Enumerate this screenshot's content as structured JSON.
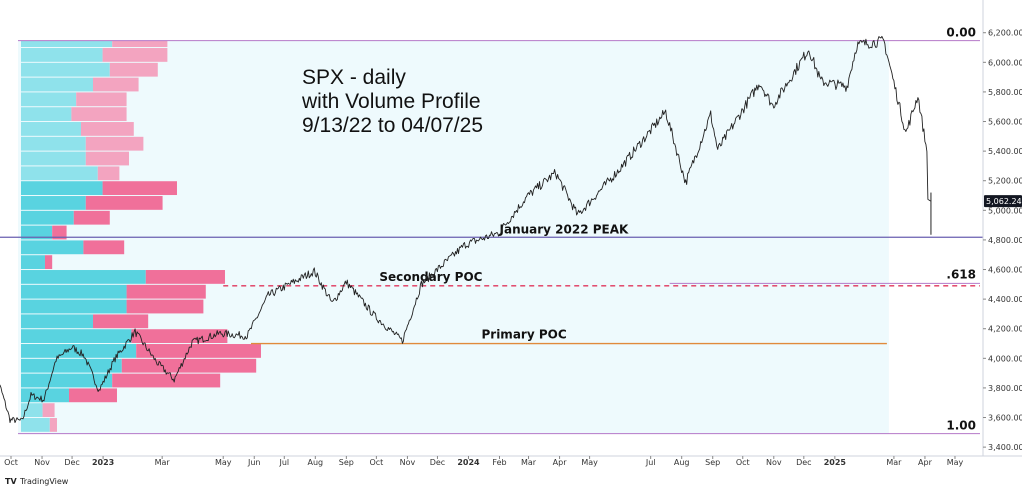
{
  "chart_data": {
    "type": "line",
    "title_lines": [
      "SPX - daily",
      "with Volume Profile",
      "9/13/22 to 04/07/25"
    ],
    "ylim": [
      3340,
      6340
    ],
    "yticks": [
      3400,
      3600,
      3800,
      4000,
      4200,
      4400,
      4600,
      4800,
      5000,
      5200,
      5400,
      5600,
      5800,
      6000,
      6200
    ],
    "ytick_labels": [
      "3,400.00",
      "3,600.00",
      "3,800.00",
      "4,000.00",
      "4,200.00",
      "4,400.00",
      "4,600.00",
      "4,800.00",
      "5,000.00",
      "5,200.00",
      "5,400.00",
      "5,600.00",
      "5,800.00",
      "6,000.00",
      "6,200.00"
    ],
    "xlim": [
      "2022-09-28",
      "2025-05-26"
    ],
    "xticks": [
      {
        "date": "2022-10-01",
        "label": "Oct",
        "bold": false
      },
      {
        "date": "2022-11-01",
        "label": "Nov",
        "bold": false
      },
      {
        "date": "2022-12-01",
        "label": "Dec",
        "bold": false
      },
      {
        "date": "2023-01-01",
        "label": "2023",
        "bold": true
      },
      {
        "date": "2023-03-01",
        "label": "Mar",
        "bold": false
      },
      {
        "date": "2023-05-01",
        "label": "May",
        "bold": false
      },
      {
        "date": "2023-06-01",
        "label": "Jun",
        "bold": false
      },
      {
        "date": "2023-07-01",
        "label": "Jul",
        "bold": false
      },
      {
        "date": "2023-08-01",
        "label": "Aug",
        "bold": false
      },
      {
        "date": "2023-09-01",
        "label": "Sep",
        "bold": false
      },
      {
        "date": "2023-10-01",
        "label": "Oct",
        "bold": false
      },
      {
        "date": "2023-11-01",
        "label": "Nov",
        "bold": false
      },
      {
        "date": "2023-12-01",
        "label": "Dec",
        "bold": false
      },
      {
        "date": "2024-01-01",
        "label": "2024",
        "bold": true
      },
      {
        "date": "2024-02-01",
        "label": "Feb",
        "bold": false
      },
      {
        "date": "2024-03-01",
        "label": "Mar",
        "bold": false
      },
      {
        "date": "2024-04-01",
        "label": "Apr",
        "bold": false
      },
      {
        "date": "2024-05-01",
        "label": "May",
        "bold": false
      },
      {
        "date": "2024-07-01",
        "label": "Jul",
        "bold": false
      },
      {
        "date": "2024-08-01",
        "label": "Aug",
        "bold": false
      },
      {
        "date": "2024-09-01",
        "label": "Sep",
        "bold": false
      },
      {
        "date": "2024-10-01",
        "label": "Oct",
        "bold": false
      },
      {
        "date": "2024-11-01",
        "label": "Nov",
        "bold": false
      },
      {
        "date": "2024-12-01",
        "label": "Dec",
        "bold": false
      },
      {
        "date": "2025-01-01",
        "label": "2025",
        "bold": true
      },
      {
        "date": "2025-03-01",
        "label": "Mar",
        "bold": false
      },
      {
        "date": "2025-04-01",
        "label": "Apr",
        "bold": false
      },
      {
        "date": "2025-05-01",
        "label": "May",
        "bold": false
      }
    ],
    "price_series": [
      {
        "date": "2022-09-13",
        "value": 3932
      },
      {
        "date": "2022-09-21",
        "value": 3790
      },
      {
        "date": "2022-09-30",
        "value": 3585
      },
      {
        "date": "2022-10-12",
        "value": 3577
      },
      {
        "date": "2022-10-21",
        "value": 3750
      },
      {
        "date": "2022-11-03",
        "value": 3720
      },
      {
        "date": "2022-11-15",
        "value": 3991
      },
      {
        "date": "2022-12-01",
        "value": 4076
      },
      {
        "date": "2022-12-13",
        "value": 4019
      },
      {
        "date": "2022-12-28",
        "value": 3783
      },
      {
        "date": "2023-01-13",
        "value": 3999
      },
      {
        "date": "2023-02-02",
        "value": 4179
      },
      {
        "date": "2023-02-24",
        "value": 3970
      },
      {
        "date": "2023-03-13",
        "value": 3855
      },
      {
        "date": "2023-03-31",
        "value": 4109
      },
      {
        "date": "2023-04-28",
        "value": 4169
      },
      {
        "date": "2023-05-25",
        "value": 4151
      },
      {
        "date": "2023-06-15",
        "value": 4425
      },
      {
        "date": "2023-07-31",
        "value": 4589
      },
      {
        "date": "2023-08-18",
        "value": 4370
      },
      {
        "date": "2023-09-01",
        "value": 4515
      },
      {
        "date": "2023-09-29",
        "value": 4288
      },
      {
        "date": "2023-10-27",
        "value": 4117
      },
      {
        "date": "2023-11-15",
        "value": 4502
      },
      {
        "date": "2023-12-29",
        "value": 4770
      },
      {
        "date": "2024-01-31",
        "value": 4846
      },
      {
        "date": "2024-02-29",
        "value": 5096
      },
      {
        "date": "2024-03-28",
        "value": 5254
      },
      {
        "date": "2024-04-19",
        "value": 4967
      },
      {
        "date": "2024-05-31",
        "value": 5278
      },
      {
        "date": "2024-07-16",
        "value": 5667
      },
      {
        "date": "2024-08-05",
        "value": 5186
      },
      {
        "date": "2024-08-30",
        "value": 5648
      },
      {
        "date": "2024-09-06",
        "value": 5408
      },
      {
        "date": "2024-10-18",
        "value": 5864
      },
      {
        "date": "2024-10-31",
        "value": 5705
      },
      {
        "date": "2024-12-06",
        "value": 6090
      },
      {
        "date": "2024-12-18",
        "value": 5872
      },
      {
        "date": "2025-01-13",
        "value": 5836
      },
      {
        "date": "2025-01-23",
        "value": 6118
      },
      {
        "date": "2025-02-19",
        "value": 6144
      },
      {
        "date": "2025-03-13",
        "value": 5521
      },
      {
        "date": "2025-03-25",
        "value": 5776
      },
      {
        "date": "2025-04-03",
        "value": 5397
      },
      {
        "date": "2025-04-04",
        "value": 5074
      },
      {
        "date": "2025-04-07",
        "value": 5062
      }
    ],
    "volume_profile": {
      "bins": [
        {
          "low": 3500,
          "high": 3600,
          "up": 0.12,
          "down": 0.03
        },
        {
          "low": 3600,
          "high": 3700,
          "up": 0.09,
          "down": 0.05
        },
        {
          "low": 3700,
          "high": 3800,
          "up": 0.2,
          "down": 0.2
        },
        {
          "low": 3800,
          "high": 3900,
          "up": 0.38,
          "down": 0.45
        },
        {
          "low": 3900,
          "high": 4000,
          "up": 0.42,
          "down": 0.56
        },
        {
          "low": 4000,
          "high": 4100,
          "up": 0.48,
          "down": 0.52
        },
        {
          "low": 4100,
          "high": 4200,
          "up": 0.46,
          "down": 0.4
        },
        {
          "low": 4200,
          "high": 4300,
          "up": 0.3,
          "down": 0.23
        },
        {
          "low": 4300,
          "high": 4400,
          "up": 0.44,
          "down": 0.32
        },
        {
          "low": 4400,
          "high": 4500,
          "up": 0.44,
          "down": 0.33
        },
        {
          "low": 4500,
          "high": 4600,
          "up": 0.52,
          "down": 0.33
        },
        {
          "low": 4600,
          "high": 4700,
          "up": 0.1,
          "down": 0.03
        },
        {
          "low": 4700,
          "high": 4800,
          "up": 0.26,
          "down": 0.17
        },
        {
          "low": 4800,
          "high": 4900,
          "up": 0.13,
          "down": 0.06
        },
        {
          "low": 4900,
          "high": 5000,
          "up": 0.22,
          "down": 0.15
        },
        {
          "low": 5000,
          "high": 5100,
          "up": 0.27,
          "down": 0.32
        },
        {
          "low": 5100,
          "high": 5200,
          "up": 0.34,
          "down": 0.31
        },
        {
          "low": 5200,
          "high": 5300,
          "up": 0.32,
          "down": 0.09
        },
        {
          "low": 5300,
          "high": 5400,
          "up": 0.27,
          "down": 0.18
        },
        {
          "low": 5400,
          "high": 5500,
          "up": 0.27,
          "down": 0.24
        },
        {
          "low": 5500,
          "high": 5600,
          "up": 0.25,
          "down": 0.22
        },
        {
          "low": 5600,
          "high": 5700,
          "up": 0.21,
          "down": 0.23
        },
        {
          "low": 5700,
          "high": 5800,
          "up": 0.23,
          "down": 0.21
        },
        {
          "low": 5800,
          "high": 5900,
          "up": 0.3,
          "down": 0.19
        },
        {
          "low": 5900,
          "high": 6000,
          "up": 0.37,
          "down": 0.2
        },
        {
          "low": 6000,
          "high": 6100,
          "up": 0.34,
          "down": 0.27
        },
        {
          "low": 6100,
          "high": 6150,
          "up": 0.38,
          "down": 0.23
        }
      ]
    },
    "levels": [
      {
        "name": "fib-0",
        "value": 6147,
        "label": "0.00",
        "style": "fib"
      },
      {
        "name": "fib-1",
        "value": 3491,
        "label": "1.00",
        "style": "fib"
      },
      {
        "name": "fib-618",
        "value": 4506,
        "label": ".618",
        "style": "fib"
      },
      {
        "name": "january-2022-peak",
        "value": 4818,
        "label": "January 2022 PEAK",
        "style": "solid"
      },
      {
        "name": "secondary-poc",
        "value": 4490,
        "label": "Secondary POC",
        "style": "dashed"
      },
      {
        "name": "primary-poc",
        "value": 4100,
        "label": "Primary POC",
        "style": "poc"
      }
    ],
    "last_price": {
      "value": 5062.24,
      "label": "5,062.24"
    },
    "colors": {
      "profile_up": "#59d3e0",
      "profile_up_light": "#8fe2eb",
      "profile_down": "#f0709a",
      "profile_down_light": "#f3a4c0",
      "range_fill": "#eefafd",
      "fib_line": "#b478c8",
      "peak_line": "#6a5fb0",
      "secondary_poc": "#e0365c",
      "primary_poc": "#e08a3c",
      "price": "#222222",
      "price_tag": "#131722"
    }
  },
  "brand": {
    "name": "TradingView"
  }
}
